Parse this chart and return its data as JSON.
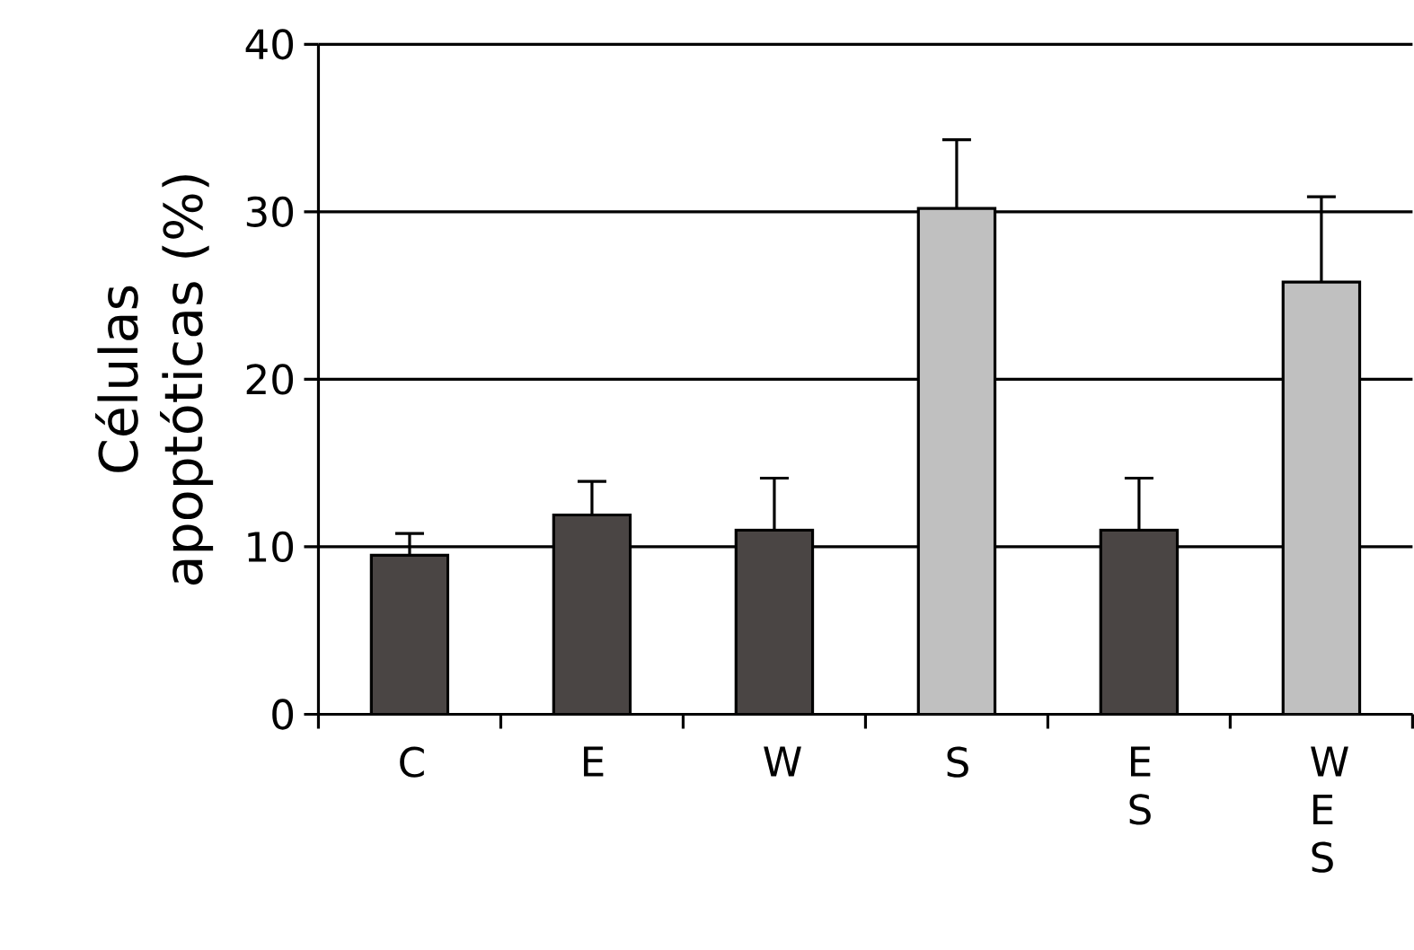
{
  "chart_data": {
    "type": "bar",
    "ylabel": "Células apoptóticas (%)",
    "categories": [
      "C",
      "E",
      "W",
      "S",
      "E S",
      "W E S"
    ],
    "values": [
      9.5,
      11.9,
      11.0,
      30.2,
      11.0,
      25.8
    ],
    "colors": [
      "#4a4544",
      "#4a4544",
      "#4a4544",
      "#c0c0c0",
      "#4a4544",
      "#c0c0c0"
    ],
    "errors": [
      [
        9.5,
        10.8
      ],
      [
        11.9,
        13.9
      ],
      [
        11.0,
        14.1
      ],
      [
        30.2,
        34.3
      ],
      [
        11.0,
        14.1
      ],
      [
        25.8,
        30.9
      ]
    ],
    "ylim": [
      0,
      40
    ],
    "yticks": [
      0,
      10,
      20,
      30,
      40
    ],
    "grid": "y"
  }
}
